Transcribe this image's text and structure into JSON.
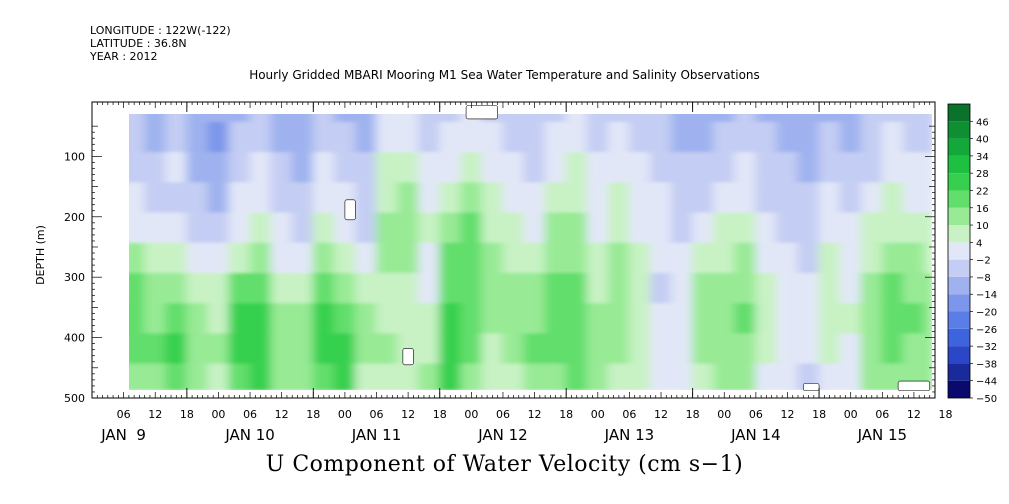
{
  "header": {
    "longitude": "LONGITUDE : 122W(-122)",
    "latitude": "LATITUDE : 36.8N",
    "year": "YEAR : 2012"
  },
  "colors": {
    "scale": [
      "#0a0a6e",
      "#1a2a9a",
      "#2c46c8",
      "#3d63de",
      "#5a7de6",
      "#7b96ea",
      "#9fb2ef",
      "#c4cdf3",
      "#e2e7f8",
      "#c8f2c4",
      "#98ea95",
      "#62de6c",
      "#36d04e",
      "#1ec042",
      "#14a83a",
      "#0e8f32",
      "#0a722a",
      "#075a22",
      "#044219"
    ]
  },
  "chart_data": {
    "type": "heatmap",
    "title": "Hourly Gridded MBARI Mooring M1 Sea Water Temperature and Salinity Observations",
    "xlabel": "",
    "ylabel": "DEPTH (m)",
    "bottom_title": "U Component of Water Velocity (cm s−1)",
    "y_axis": {
      "ticks": [
        100,
        200,
        300,
        400,
        500
      ],
      "tick_labels": [
        "100",
        "200",
        "300",
        "400",
        "500"
      ],
      "range": [
        10,
        500
      ],
      "inverted": true
    },
    "x_axis": {
      "range_hours": [
        0,
        160
      ],
      "hour_labels": [
        "06",
        "12",
        "18",
        "00",
        "06",
        "12",
        "18",
        "00",
        "06",
        "12",
        "18",
        "00",
        "06",
        "12",
        "18",
        "00",
        "06",
        "12",
        "18",
        "00",
        "06",
        "12",
        "18",
        "00",
        "06",
        "12",
        "18"
      ],
      "day_labels": [
        "JAN  9",
        "JAN 10",
        "JAN 11",
        "JAN 12",
        "JAN 13",
        "JAN 14",
        "JAN 15"
      ]
    },
    "colorbar": {
      "levels": [
        46,
        40,
        34,
        28,
        22,
        16,
        10,
        4,
        -2,
        -8,
        -14,
        -20,
        -26,
        -32,
        -38,
        -44,
        -50
      ],
      "labels": [
        "46",
        "40",
        "34",
        "28",
        "22",
        "16",
        "10",
        "4",
        "−2",
        "−8",
        "−14",
        "−20",
        "−26",
        "−32",
        "−38",
        "−44",
        "−50"
      ],
      "range": [
        -50,
        52
      ]
    },
    "data_extent": {
      "hours": [
        4,
        160
      ],
      "depth_m": [
        16,
        488
      ]
    },
    "columns": [
      {
        "h": 4,
        "v": [
          -12,
          -14,
          -10,
          -8,
          -4,
          4,
          10,
          12,
          10,
          6
        ]
      },
      {
        "h": 8,
        "v": [
          -10,
          -12,
          -8,
          -6,
          -2,
          6,
          12,
          14,
          12,
          8
        ]
      },
      {
        "h": 12,
        "v": [
          -14,
          -16,
          -12,
          -10,
          -6,
          2,
          8,
          10,
          14,
          10
        ]
      },
      {
        "h": 16,
        "v": [
          -12,
          -10,
          -6,
          -8,
          -4,
          4,
          10,
          16,
          18,
          14
        ]
      },
      {
        "h": 20,
        "v": [
          -16,
          -18,
          -14,
          -12,
          -8,
          -2,
          4,
          8,
          10,
          8
        ]
      },
      {
        "h": 24,
        "v": [
          -18,
          -20,
          -16,
          -14,
          -10,
          -6,
          0,
          4,
          6,
          4
        ]
      },
      {
        "h": 28,
        "v": [
          -14,
          -12,
          -8,
          -6,
          -2,
          4,
          12,
          18,
          20,
          16
        ]
      },
      {
        "h": 32,
        "v": [
          -10,
          -8,
          -4,
          -2,
          2,
          8,
          14,
          20,
          22,
          18
        ]
      },
      {
        "h": 36,
        "v": [
          -16,
          -14,
          -10,
          -8,
          -6,
          -2,
          4,
          8,
          10,
          6
        ]
      },
      {
        "h": 40,
        "v": [
          -18,
          -16,
          -14,
          -12,
          -10,
          -4,
          2,
          6,
          8,
          6
        ]
      },
      {
        "h": 44,
        "v": [
          -12,
          -10,
          -6,
          -2,
          2,
          8,
          14,
          18,
          20,
          14
        ]
      },
      {
        "h": 48,
        "v": [
          -14,
          -12,
          -8,
          -6,
          -4,
          2,
          10,
          16,
          20,
          18
        ]
      },
      {
        "h": 52,
        "v": [
          -16,
          -14,
          -12,
          -10,
          -8,
          -4,
          2,
          6,
          8,
          4
        ]
      },
      {
        "h": 56,
        "v": [
          -6,
          -4,
          0,
          4,
          8,
          6,
          2,
          4,
          6,
          4
        ]
      },
      {
        "h": 60,
        "v": [
          -4,
          -2,
          2,
          6,
          10,
          8,
          4,
          2,
          4,
          2
        ]
      },
      {
        "h": 64,
        "v": [
          -10,
          -8,
          -4,
          -2,
          0,
          -2,
          -4,
          0,
          4,
          6
        ]
      },
      {
        "h": 68,
        "v": [
          -8,
          -6,
          -2,
          4,
          10,
          12,
          14,
          18,
          22,
          20
        ]
      },
      {
        "h": 72,
        "v": [
          -6,
          -4,
          0,
          6,
          12,
          14,
          16,
          14,
          12,
          10
        ]
      },
      {
        "h": 76,
        "v": [
          -8,
          -6,
          -4,
          0,
          4,
          6,
          8,
          6,
          4,
          2
        ]
      },
      {
        "h": 80,
        "v": [
          -10,
          -8,
          -6,
          -2,
          2,
          4,
          6,
          8,
          6,
          4
        ]
      },
      {
        "h": 84,
        "v": [
          -12,
          -10,
          -8,
          -6,
          -2,
          2,
          6,
          10,
          12,
          8
        ]
      },
      {
        "h": 88,
        "v": [
          -8,
          -6,
          -2,
          2,
          6,
          8,
          12,
          14,
          12,
          8
        ]
      },
      {
        "h": 92,
        "v": [
          -6,
          -4,
          0,
          4,
          8,
          10,
          12,
          14,
          16,
          12
        ]
      },
      {
        "h": 96,
        "v": [
          -10,
          -8,
          -6,
          -4,
          -2,
          2,
          4,
          6,
          8,
          6
        ]
      },
      {
        "h": 100,
        "v": [
          -8,
          -6,
          -4,
          0,
          4,
          6,
          8,
          10,
          8,
          4
        ]
      },
      {
        "h": 104,
        "v": [
          -10,
          -8,
          -6,
          -4,
          -2,
          0,
          2,
          4,
          2,
          0
        ]
      },
      {
        "h": 108,
        "v": [
          -12,
          -10,
          -8,
          -6,
          -4,
          -6,
          -8,
          -6,
          -4,
          -2
        ]
      },
      {
        "h": 112,
        "v": [
          -14,
          -16,
          -12,
          -10,
          -8,
          -6,
          -4,
          -2,
          -4,
          -6
        ]
      },
      {
        "h": 116,
        "v": [
          -16,
          -14,
          -10,
          -8,
          -4,
          2,
          6,
          8,
          6,
          4
        ]
      },
      {
        "h": 120,
        "v": [
          -14,
          -12,
          -8,
          -4,
          0,
          4,
          8,
          10,
          8,
          6
        ]
      },
      {
        "h": 124,
        "v": [
          -12,
          -10,
          -6,
          -2,
          2,
          6,
          10,
          12,
          10,
          8
        ]
      },
      {
        "h": 128,
        "v": [
          -14,
          -12,
          -10,
          -8,
          -6,
          -2,
          2,
          4,
          2,
          -2
        ]
      },
      {
        "h": 132,
        "v": [
          -16,
          -14,
          -12,
          -10,
          -8,
          -6,
          -4,
          -2,
          -4,
          -6
        ]
      },
      {
        "h": 136,
        "v": [
          -18,
          -16,
          -14,
          -12,
          -10,
          -8,
          -6,
          -4,
          -6,
          -8
        ]
      },
      {
        "h": 140,
        "v": [
          -14,
          -12,
          -8,
          -6,
          -2,
          2,
          4,
          2,
          0,
          -2
        ]
      },
      {
        "h": 144,
        "v": [
          -16,
          -14,
          -12,
          -10,
          -6,
          -4,
          -2,
          0,
          -2,
          -4
        ]
      },
      {
        "h": 148,
        "v": [
          -12,
          -10,
          -8,
          -4,
          0,
          4,
          8,
          10,
          8,
          6
        ]
      },
      {
        "h": 152,
        "v": [
          -8,
          -6,
          -4,
          0,
          4,
          8,
          12,
          14,
          12,
          10
        ]
      },
      {
        "h": 156,
        "v": [
          -10,
          -8,
          -4,
          -2,
          2,
          6,
          10,
          12,
          10,
          8
        ]
      },
      {
        "h": 160,
        "v": [
          -12,
          -10,
          -6,
          -4,
          0,
          4,
          8,
          10,
          8,
          6
        ]
      }
    ],
    "depth_levels_m": [
      20,
      70,
      120,
      170,
      220,
      270,
      320,
      370,
      420,
      470
    ],
    "gaps": [
      {
        "h": [
          71,
          77
        ],
        "d": [
          16,
          38
        ]
      },
      {
        "h": [
          48,
          50
        ],
        "d": [
          172,
          205
        ]
      },
      {
        "h": [
          59,
          61
        ],
        "d": [
          418,
          445
        ]
      },
      {
        "h": [
          135,
          138
        ],
        "d": [
          476,
          488
        ]
      },
      {
        "h": [
          153,
          159
        ],
        "d": [
          472,
          488
        ]
      }
    ]
  }
}
